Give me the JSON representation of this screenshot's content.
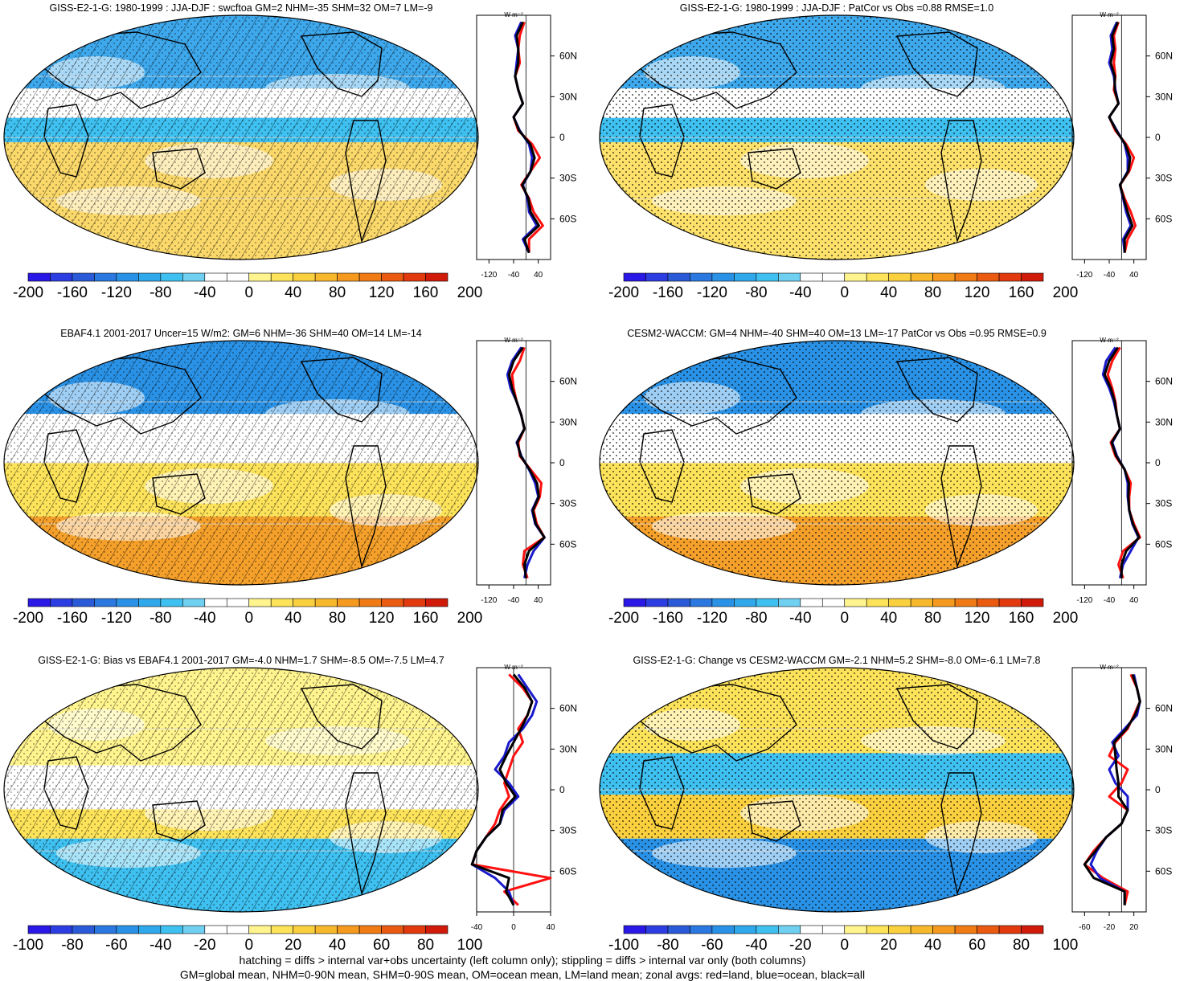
{
  "footer": {
    "line1": "hatching = diffs > internal var+obs uncertainty (left column only); stippling = diffs > internal var only (both columns)",
    "line2": "GM=global mean, NHM=0-90N mean, SHM=0-90S mean, OM=ocean mean, LM=land mean; zonal avgs: red=land, blue=ocean, black=all"
  },
  "colors": {
    "land": "#ff1010",
    "ocean": "#1a1acc",
    "all": "#000000"
  },
  "scales": {
    "wide": {
      "colors": [
        "#2a18e6",
        "#2c3ee2",
        "#2b5ad8",
        "#2a78e0",
        "#2a92e6",
        "#2fa8ec",
        "#3ec0f0",
        "#70d0f2",
        "#ffffff",
        "#ffffff",
        "#fff48e",
        "#fde35a",
        "#fbd03e",
        "#f8b82c",
        "#f59a1e",
        "#f07a14",
        "#ea5a10",
        "#e23a0e",
        "#d01a0a"
      ],
      "labels": [
        "-200",
        "-160",
        "-120",
        "-80",
        "-40",
        "0",
        "40",
        "80",
        "120",
        "160",
        "200"
      ]
    },
    "narrow": {
      "colors": [
        "#2a18e6",
        "#2c3ee2",
        "#2b5ad8",
        "#2a78e0",
        "#2a92e6",
        "#2fa8ec",
        "#3ec0f0",
        "#70d0f2",
        "#ffffff",
        "#ffffff",
        "#fff48e",
        "#fde35a",
        "#fbd03e",
        "#f8b82c",
        "#f59a1e",
        "#f07a14",
        "#ea5a10",
        "#e23a0e",
        "#d01a0a"
      ],
      "labels": [
        "-100",
        "-80",
        "-60",
        "-40",
        "-20",
        "0",
        "20",
        "40",
        "60",
        "80",
        "100"
      ]
    }
  },
  "zonal_axis": {
    "unit": "W m⁻²",
    "lat_labels": [
      "60N",
      "30N",
      "0",
      "30S",
      "60S"
    ]
  },
  "chart_data": [
    {
      "type": "map",
      "title": "GISS-E2-1-G: 1980-1999 : JJA-DJF : swcftoa GM=2 NHM=-35 SHM=32 OM=7 LM=-9",
      "pattern": "hatch",
      "scale": "wide",
      "zonal": {
        "xticks": [
          "-120",
          "-40",
          "40"
        ],
        "xlim": [
          -160,
          80
        ],
        "lat": [
          85,
          75,
          65,
          55,
          45,
          35,
          25,
          15,
          5,
          -5,
          -15,
          -25,
          -35,
          -45,
          -55,
          -65,
          -75,
          -85
        ],
        "land": [
          -5,
          -20,
          -25,
          -20,
          -35,
          -25,
          -10,
          -40,
          -25,
          20,
          45,
          15,
          -15,
          10,
          25,
          55,
          10,
          10
        ],
        "ocean": [
          -15,
          -35,
          -25,
          -30,
          -35,
          -25,
          -10,
          -40,
          -20,
          10,
          20,
          15,
          -10,
          5,
          10,
          35,
          -10,
          10
        ],
        "all": [
          -10,
          -30,
          -25,
          -25,
          -35,
          -25,
          -10,
          -40,
          -22,
          14,
          28,
          15,
          -12,
          8,
          15,
          42,
          -5,
          10
        ]
      }
    },
    {
      "type": "map",
      "title": "GISS-E2-1-G: 1980-1999 : JJA-DJF : PatCor vs Obs =0.88 RMSE=1.0",
      "pattern": "stipple",
      "scale": "wide",
      "zonal": {
        "xticks": [
          "-120",
          "-40",
          "40"
        ],
        "xlim": [
          -160,
          80
        ],
        "lat": [
          85,
          75,
          65,
          55,
          45,
          35,
          25,
          15,
          5,
          -5,
          -15,
          -25,
          -35,
          -45,
          -55,
          -65,
          -75,
          -85
        ],
        "land": [
          -10,
          -25,
          -20,
          -25,
          -20,
          -25,
          -10,
          -40,
          -20,
          15,
          40,
          25,
          -5,
          10,
          30,
          45,
          20,
          10
        ],
        "ocean": [
          -15,
          -35,
          -30,
          -40,
          -25,
          -20,
          -10,
          -40,
          -15,
          10,
          20,
          20,
          -5,
          5,
          15,
          30,
          5,
          10
        ],
        "all": [
          -12,
          -30,
          -25,
          -35,
          -22,
          -22,
          -10,
          -40,
          -17,
          12,
          28,
          22,
          -5,
          7,
          20,
          35,
          10,
          10
        ]
      }
    },
    {
      "type": "map",
      "title": "EBAF4.1 2001-2017 Uncer=15 W/m2: GM=6 NHM=-36 SHM=40 OM=14 LM=-14",
      "pattern": "hatch",
      "scale": "wide",
      "zonal": {
        "xticks": [
          "-120",
          "-40",
          "40"
        ],
        "xlim": [
          -160,
          80
        ],
        "lat": [
          85,
          75,
          65,
          55,
          45,
          35,
          25,
          15,
          5,
          -5,
          -15,
          -25,
          -35,
          -45,
          -55,
          -65,
          -75,
          -85
        ],
        "land": [
          -5,
          -20,
          -45,
          -40,
          -30,
          -15,
          -5,
          -25,
          -20,
          15,
          50,
          45,
          25,
          35,
          60,
          -5,
          -10,
          5
        ],
        "ocean": [
          -15,
          -45,
          -60,
          -50,
          -30,
          -15,
          -5,
          -30,
          -15,
          10,
          30,
          40,
          20,
          30,
          60,
          25,
          5,
          -5
        ],
        "all": [
          -10,
          -40,
          -55,
          -45,
          -30,
          -15,
          -5,
          -28,
          -17,
          12,
          36,
          42,
          22,
          32,
          60,
          10,
          -5,
          0
        ]
      }
    },
    {
      "type": "map",
      "title": "CESM2-WACCM: GM=4 NHM=-40 SHM=40 OM=13 LM=-17 PatCor vs Obs =0.95 RMSE=0.9",
      "pattern": "stipple",
      "scale": "wide",
      "zonal": {
        "xticks": [
          "-120",
          "-40",
          "40"
        ],
        "xlim": [
          -160,
          80
        ],
        "lat": [
          85,
          75,
          65,
          55,
          45,
          35,
          25,
          15,
          5,
          -5,
          -15,
          -25,
          -35,
          -45,
          -55,
          -65,
          -75,
          -85
        ],
        "land": [
          -5,
          -30,
          -45,
          -30,
          -20,
          -15,
          -5,
          -35,
          -20,
          10,
          30,
          25,
          25,
          40,
          60,
          5,
          -10,
          5
        ],
        "ocean": [
          -20,
          -50,
          -60,
          -40,
          -25,
          -15,
          -5,
          -30,
          -15,
          10,
          20,
          20,
          25,
          35,
          55,
          30,
          5,
          -5
        ],
        "all": [
          -12,
          -40,
          -55,
          -35,
          -22,
          -15,
          -5,
          -32,
          -17,
          10,
          24,
          22,
          25,
          37,
          57,
          15,
          0,
          0
        ]
      }
    },
    {
      "type": "map",
      "title": "GISS-E2-1-G: Bias vs EBAF4.1 2001-2017 GM=-4.0 NHM=1.7 SHM=-8.5 OM=-7.5 LM=4.7",
      "pattern": "hatch",
      "scale": "narrow",
      "zonal": {
        "xticks": [
          "-40",
          "0",
          "40"
        ],
        "xlim": [
          -40,
          40
        ],
        "lat": [
          85,
          75,
          65,
          55,
          45,
          35,
          25,
          15,
          5,
          -5,
          -15,
          -25,
          -35,
          -45,
          -55,
          -65,
          -75,
          -85
        ],
        "land": [
          -5,
          10,
          20,
          15,
          5,
          10,
          0,
          -5,
          -10,
          -5,
          -15,
          -20,
          -30,
          -40,
          -45,
          40,
          -10,
          5
        ],
        "ocean": [
          5,
          15,
          25,
          20,
          10,
          -5,
          -10,
          -20,
          -5,
          5,
          -10,
          -15,
          -30,
          -40,
          -45,
          -20,
          -5,
          0
        ],
        "all": [
          0,
          12,
          20,
          15,
          8,
          0,
          -8,
          -15,
          -8,
          2,
          -12,
          -15,
          -30,
          -40,
          -45,
          -5,
          -8,
          0
        ]
      }
    },
    {
      "type": "map",
      "title": "GISS-E2-1-G: Change vs CESM2-WACCM GM=-2.1 NHM=5.2 SHM=-8.0 OM=-6.1 LM=7.8",
      "pattern": "stipple",
      "scale": "narrow",
      "zonal": {
        "xticks": [
          "-60",
          "-20",
          "20"
        ],
        "xlim": [
          -80,
          40
        ],
        "lat": [
          85,
          75,
          65,
          55,
          45,
          35,
          25,
          15,
          5,
          -5,
          -15,
          -25,
          -35,
          -45,
          -55,
          -65,
          -75,
          -85
        ],
        "land": [
          15,
          25,
          30,
          20,
          10,
          -10,
          -20,
          10,
          0,
          -20,
          10,
          0,
          -25,
          -45,
          -60,
          -30,
          10,
          5
        ],
        "ocean": [
          20,
          25,
          30,
          25,
          5,
          -15,
          -5,
          -20,
          -10,
          10,
          10,
          0,
          -25,
          -40,
          -50,
          -35,
          5,
          5
        ],
        "all": [
          18,
          25,
          30,
          22,
          8,
          -12,
          -10,
          -8,
          -5,
          -5,
          10,
          0,
          -25,
          -42,
          -60,
          -45,
          5,
          5
        ]
      }
    }
  ]
}
